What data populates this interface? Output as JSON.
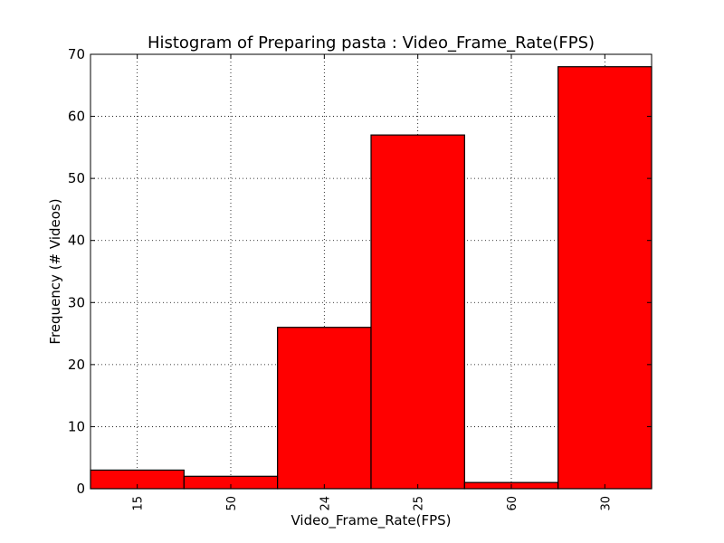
{
  "chart_data": {
    "type": "bar",
    "title": "Histogram of Preparing pasta : Video_Frame_Rate(FPS)",
    "xlabel": "Video_Frame_Rate(FPS)",
    "ylabel": "Frequency (# Videos)",
    "categories": [
      "15",
      "50",
      "24",
      "25",
      "60",
      "30"
    ],
    "values": [
      3,
      2,
      26,
      57,
      1,
      68
    ],
    "ylim": [
      0,
      70
    ],
    "yticks": [
      "0",
      "10",
      "20",
      "30",
      "40",
      "50",
      "60",
      "70"
    ],
    "grid": true,
    "bar_color": "#ff0000",
    "edge_color": "#000000",
    "x_tick_rotation": "vertical"
  }
}
